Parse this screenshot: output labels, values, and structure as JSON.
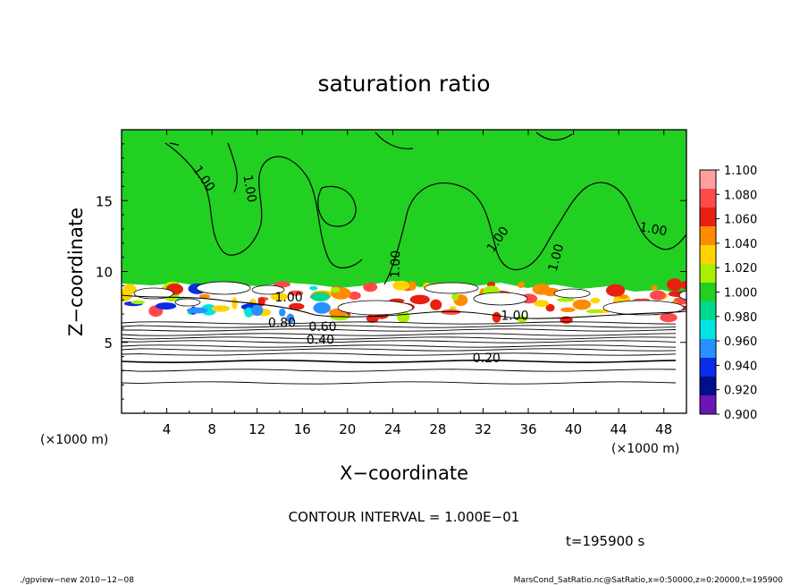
{
  "chart_data": {
    "type": "heatmap",
    "title": "saturation ratio",
    "xlabel": "X−coordinate",
    "ylabel": "Z−coordinate",
    "x_unit_left": "(×1000 m)",
    "x_unit_right": "(×1000 m)",
    "xlim": [
      0,
      50
    ],
    "ylim": [
      0,
      20
    ],
    "x_ticks": [
      "4",
      "8",
      "12",
      "16",
      "20",
      "24",
      "28",
      "32",
      "36",
      "40",
      "44",
      "48"
    ],
    "x_tick_values": [
      4,
      8,
      12,
      16,
      20,
      24,
      28,
      32,
      36,
      40,
      44,
      48
    ],
    "y_ticks": [
      "5",
      "10",
      "15"
    ],
    "y_tick_values": [
      5,
      10,
      15
    ],
    "colorbar": {
      "labels": [
        "1.100",
        "1.080",
        "1.060",
        "1.040",
        "1.020",
        "1.000",
        "0.980",
        "0.960",
        "0.940",
        "0.920",
        "0.900"
      ],
      "colors": [
        "#ff9e9e",
        "#ff4a4a",
        "#e82010",
        "#ff8c00",
        "#ffd400",
        "#a8f000",
        "#22d022",
        "#00d890",
        "#00e4e4",
        "#2890ff",
        "#0a2ce6",
        "#00108c",
        "#6a16b4"
      ]
    },
    "contour_labels": [
      {
        "text": "1.00",
        "x": 7,
        "z": 16.4,
        "rot": 55
      },
      {
        "text": "1.00",
        "x": 11,
        "z": 15.8,
        "rot": 80
      },
      {
        "text": "1.00",
        "x": 24.6,
        "z": 10.5,
        "rot": -88
      },
      {
        "text": "1.00",
        "x": 33.6,
        "z": 12.1,
        "rot": -55
      },
      {
        "text": "1.00",
        "x": 38.8,
        "z": 10.9,
        "rot": -75
      },
      {
        "text": "1.00",
        "x": 47,
        "z": 12.7,
        "rot": 10
      },
      {
        "text": "1.00",
        "x": 34.8,
        "z": 6.6,
        "rot": 0
      },
      {
        "text": "1.00",
        "x": 14.8,
        "z": 7.9,
        "rot": 0
      },
      {
        "text": "0.80",
        "x": 14.2,
        "z": 6.1,
        "rot": 0
      },
      {
        "text": "0.60",
        "x": 17.8,
        "z": 5.8,
        "rot": 0
      },
      {
        "text": "0.40",
        "x": 17.6,
        "z": 4.9,
        "rot": 0
      },
      {
        "text": "0.20",
        "x": 32.3,
        "z": 3.6,
        "rot": 0
      }
    ],
    "contour_interval_text": "CONTOUR INTERVAL = 1.000E−01",
    "time_text": "t=195900 s"
  },
  "footer": {
    "left": "./gpview−new   2010−12−08",
    "right": "MarsCond_SatRatio.nc@SatRatio,x=0:50000,z=0:20000,t=195900"
  }
}
